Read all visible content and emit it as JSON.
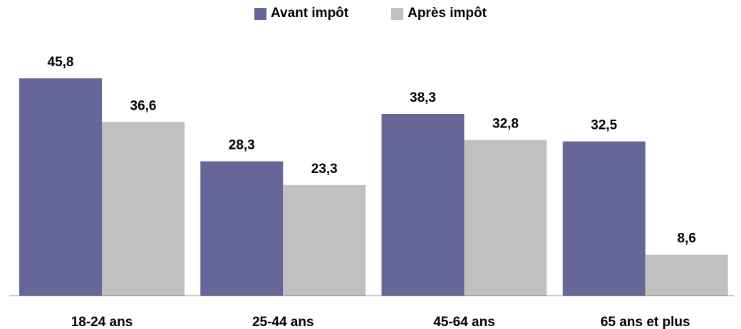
{
  "chart_data": {
    "type": "bar",
    "categories": [
      "18-24 ans",
      "25-44 ans",
      "45-64 ans",
      "65 ans et plus"
    ],
    "series": [
      {
        "name": "Avant impôt",
        "values": [
          45.8,
          28.3,
          38.3,
          32.5
        ],
        "labels": [
          "45,8",
          "28,3",
          "38,3",
          "32,5"
        ],
        "color": "#666699"
      },
      {
        "name": "Après impôt",
        "values": [
          36.6,
          23.3,
          32.8,
          8.6
        ],
        "labels": [
          "36,6",
          "23,3",
          "32,8",
          "8,6"
        ],
        "color": "#c0c0c0"
      }
    ],
    "ylim": [
      0,
      50
    ],
    "grid": false,
    "legend": "top-center"
  }
}
